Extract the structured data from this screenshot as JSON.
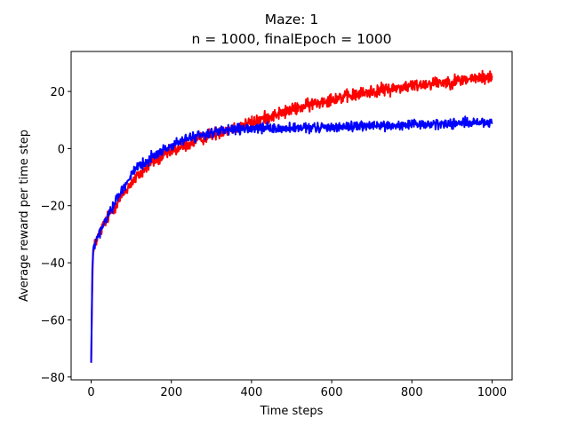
{
  "chart_data": {
    "type": "line",
    "title": "Maze: 1",
    "subtitle": "n = 1000, finalEpoch = 1000",
    "xlabel": "Time steps",
    "ylabel": "Average reward per time step",
    "xlim": [
      -50,
      1050
    ],
    "ylim": [
      -81,
      34
    ],
    "xticks": [
      0,
      200,
      400,
      600,
      800,
      1000
    ],
    "yticks": [
      -80,
      -60,
      -40,
      -20,
      0,
      20
    ],
    "grid": false,
    "series": [
      {
        "color": "#ff0000",
        "noise": 2.2,
        "x": [
          0,
          3,
          5,
          10,
          20,
          30,
          50,
          75,
          100,
          150,
          200,
          250,
          300,
          350,
          400,
          450,
          500,
          550,
          600,
          650,
          700,
          750,
          800,
          850,
          900,
          950,
          1000
        ],
        "y": [
          -75,
          -45,
          -37,
          -33,
          -30,
          -27,
          -22,
          -17,
          -12,
          -5,
          -1,
          2,
          5,
          7,
          9,
          11.5,
          13.5,
          15.5,
          17.5,
          18.5,
          20,
          21,
          22,
          23,
          23.5,
          24.5,
          25
        ]
      },
      {
        "color": "#0000ff",
        "noise": 1.7,
        "x": [
          0,
          3,
          5,
          10,
          20,
          30,
          50,
          75,
          100,
          150,
          200,
          250,
          300,
          350,
          400,
          450,
          500,
          550,
          600,
          650,
          700,
          750,
          800,
          850,
          900,
          950,
          1000
        ],
        "y": [
          -75,
          -42,
          -36,
          -33,
          -30,
          -27,
          -21,
          -15,
          -9,
          -3,
          1,
          4,
          5.5,
          6.5,
          7,
          7,
          7,
          7.2,
          7.5,
          7.8,
          8,
          8,
          8.2,
          8.5,
          8.8,
          9,
          9
        ]
      }
    ]
  }
}
